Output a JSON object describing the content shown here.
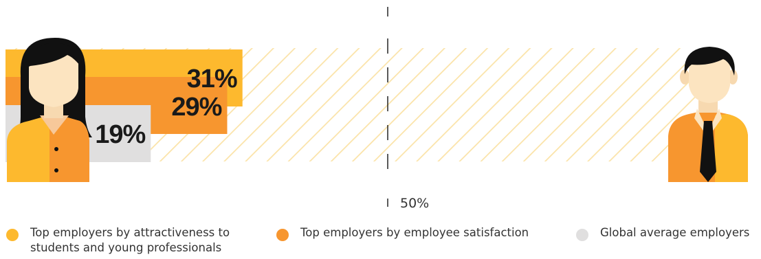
{
  "chart_data": {
    "type": "bar",
    "orientation": "horizontal",
    "series": [
      {
        "name": "Top employers by attractiveness to students and young professionals",
        "value": 31,
        "label": "31%",
        "color": "#FDB92E"
      },
      {
        "name": "Top employers by employee satisfaction",
        "value": 29,
        "label": "29%",
        "color": "#F7962F"
      },
      {
        "name": "Global average employers",
        "value": 19,
        "label": "19%",
        "color": "#E0DFDF"
      }
    ],
    "xlim": [
      0,
      100
    ],
    "midline": {
      "value": 50,
      "label": "50%"
    },
    "background": "hatched diagonal stripes",
    "hatch_color": "#FBE3A8",
    "icons": [
      "woman-icon",
      "man-icon"
    ]
  },
  "legend": {
    "items": [
      {
        "text": "Top employers by attractiveness to students and young professionals",
        "color": "#FDB92E"
      },
      {
        "text": "Top employers by employee satisfaction",
        "color": "#F7962F"
      },
      {
        "text": "Global average employers",
        "color": "#E0DFDF"
      }
    ]
  }
}
